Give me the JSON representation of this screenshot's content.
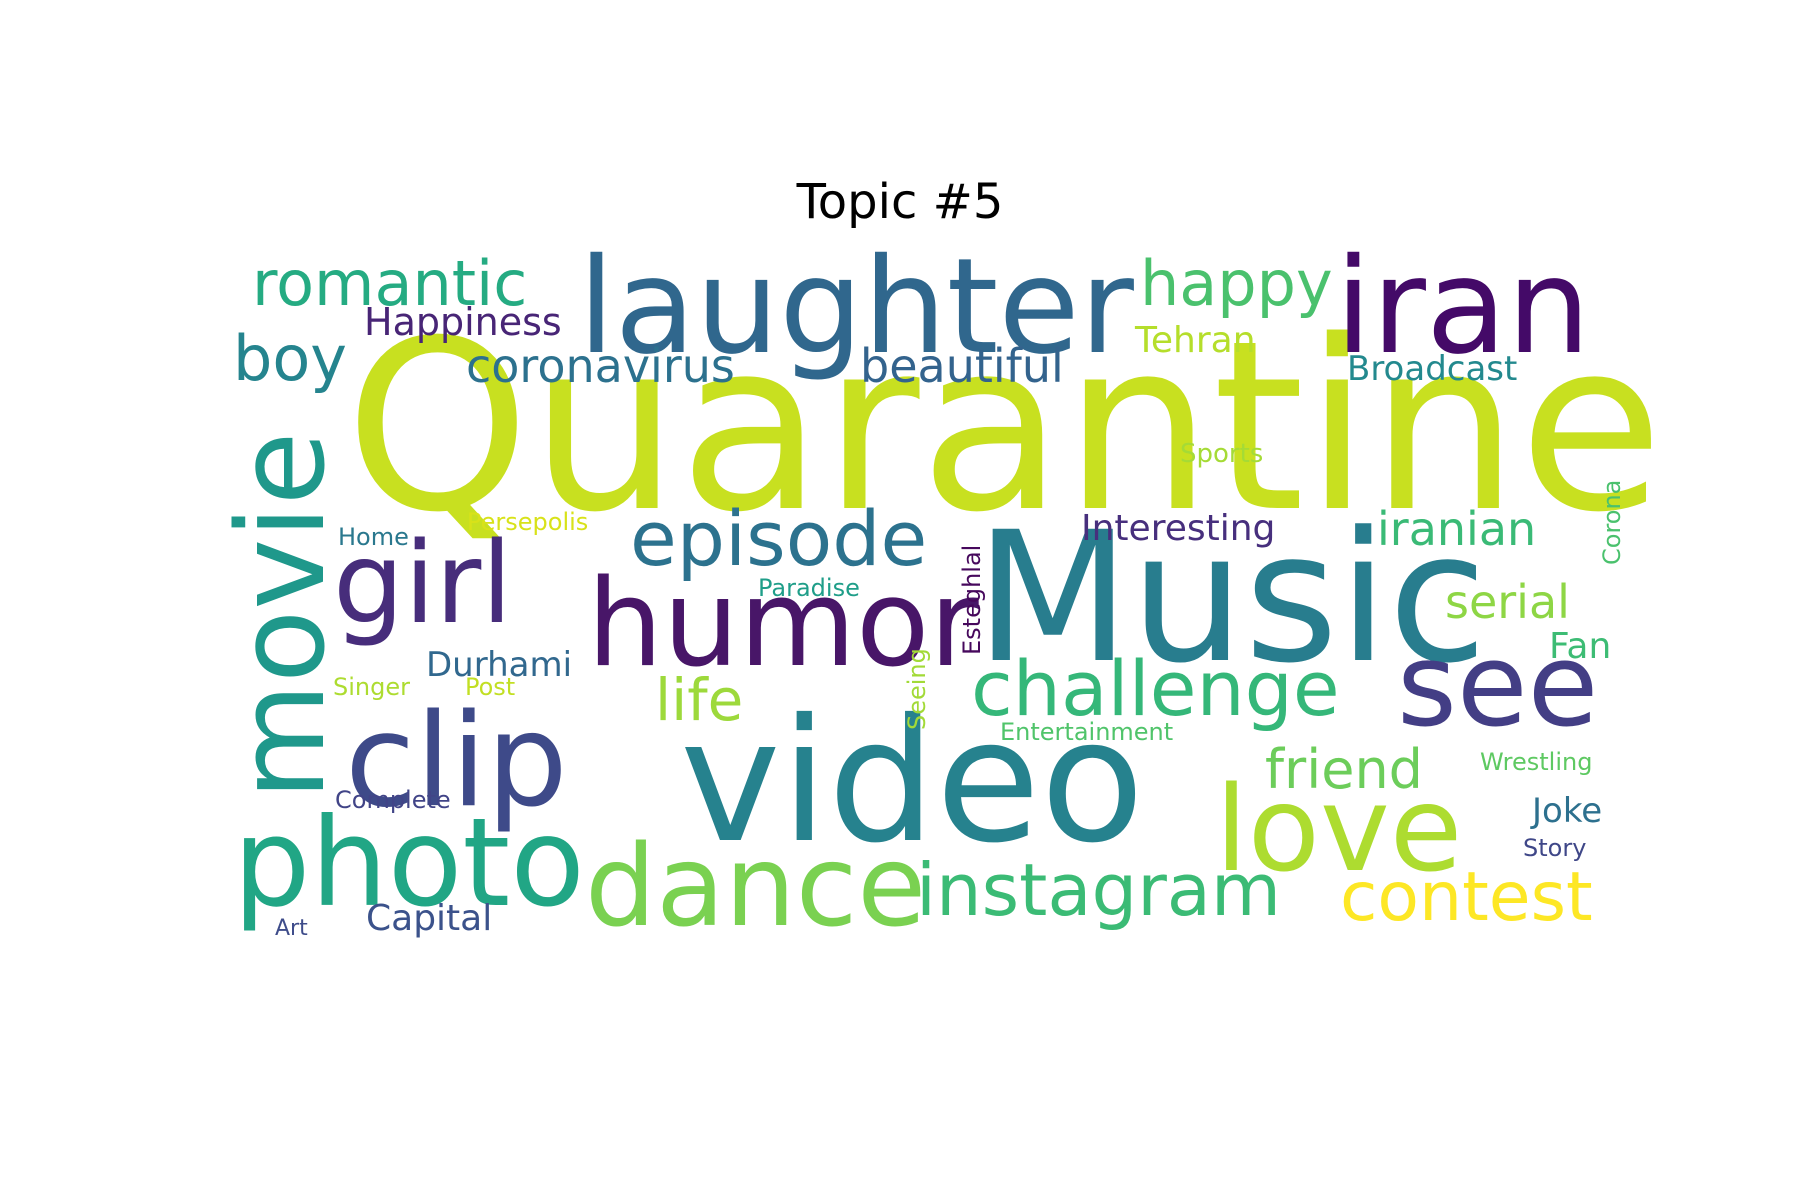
{
  "title": "Topic #5",
  "words": [
    {
      "text": "Quarantine",
      "color": "#c8e020"
    },
    {
      "text": "Music",
      "color": "#287d8e"
    },
    {
      "text": "video",
      "color": "#26828e"
    },
    {
      "text": "laughter",
      "color": "#30678d"
    },
    {
      "text": "iran",
      "color": "#440a68"
    },
    {
      "text": "humor",
      "color": "#481668"
    },
    {
      "text": "movie",
      "color": "#1f988b"
    },
    {
      "text": "clip",
      "color": "#3e4a89"
    },
    {
      "text": "girl",
      "color": "#472d7b"
    },
    {
      "text": "photo",
      "color": "#21a685"
    },
    {
      "text": "love",
      "color": "#addc30"
    },
    {
      "text": "see",
      "color": "#433e85"
    },
    {
      "text": "dance",
      "color": "#7ad151"
    },
    {
      "text": "episode",
      "color": "#2c728e"
    },
    {
      "text": "challenge",
      "color": "#35b779"
    },
    {
      "text": "instagram",
      "color": "#3bbb75"
    },
    {
      "text": "contest",
      "color": "#fde725"
    },
    {
      "text": "romantic",
      "color": "#25ab82"
    },
    {
      "text": "happy",
      "color": "#4ac16d"
    },
    {
      "text": "boy",
      "color": "#25848e"
    },
    {
      "text": "coronavirus",
      "color": "#2c718e"
    },
    {
      "text": "beautiful",
      "color": "#33638d"
    },
    {
      "text": "friend",
      "color": "#6ccd5a"
    },
    {
      "text": "life",
      "color": "#9dd93b"
    },
    {
      "text": "iranian",
      "color": "#3aba76"
    },
    {
      "text": "serial",
      "color": "#8ed645"
    },
    {
      "text": "Happiness",
      "color": "#482576"
    },
    {
      "text": "Tehran",
      "color": "#b5de2b"
    },
    {
      "text": "Broadcast",
      "color": "#23898e"
    },
    {
      "text": "Interesting",
      "color": "#472f7d"
    },
    {
      "text": "Durhami",
      "color": "#31688e"
    },
    {
      "text": "Capital",
      "color": "#3b528b"
    },
    {
      "text": "Joke",
      "color": "#2d708e"
    },
    {
      "text": "Fan",
      "color": "#3dbc74"
    },
    {
      "text": "Sports",
      "color": "#a5db36"
    },
    {
      "text": "Persepolis",
      "color": "#d8e219"
    },
    {
      "text": "Home",
      "color": "#2a788e"
    },
    {
      "text": "Paradise",
      "color": "#1f9e89"
    },
    {
      "text": "Esteghlal",
      "color": "#46085c"
    },
    {
      "text": "Corona",
      "color": "#4ac16d"
    },
    {
      "text": "Singer",
      "color": "#addc30"
    },
    {
      "text": "Post",
      "color": "#c2df23"
    },
    {
      "text": "Seeing",
      "color": "#a2da37"
    },
    {
      "text": "Entertainment",
      "color": "#50c46a"
    },
    {
      "text": "Wrestling",
      "color": "#5ec962"
    },
    {
      "text": "Complete",
      "color": "#414487"
    },
    {
      "text": "Story",
      "color": "#3f4788"
    },
    {
      "text": "Art",
      "color": "#3e4c8a"
    }
  ]
}
